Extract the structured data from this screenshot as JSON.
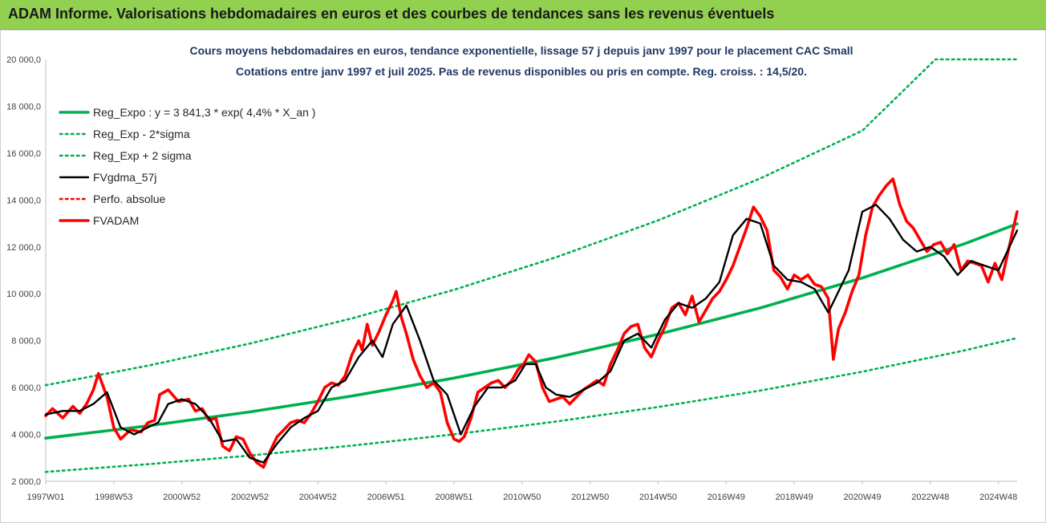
{
  "header": {
    "title": "ADAM Informe. Valorisations hebdomadaires en euros et des courbes de tendances sans les revenus éventuels"
  },
  "chart_data": {
    "type": "line",
    "title": "Cours moyens hebdomadaires en euros, tendance exponentielle, lissage 57 j depuis janv 1997  pour le placement CAC Small",
    "subtitle": "Cotations entre janv 1997 et juil 2025. Pas de revenus disponibles ou pris en compte. Reg. croiss. : 14,5/20.",
    "xlabel": "",
    "ylabel": "",
    "x_range": [
      1997.0,
      2025.55
    ],
    "ylim": [
      2000,
      20000
    ],
    "y_ticks": [
      "2 000,0",
      "4 000,0",
      "6 000,0",
      "8 000,0",
      "10 000,0",
      "12 000,0",
      "14 000,0",
      "16 000,0",
      "18 000,0",
      "20 000,0"
    ],
    "y_tick_values": [
      2000,
      4000,
      6000,
      8000,
      10000,
      12000,
      14000,
      16000,
      18000,
      20000
    ],
    "x_ticks": [
      "1997W01",
      "1998W53",
      "2000W52",
      "2002W52",
      "2004W52",
      "2006W51",
      "2008W51",
      "2010W50",
      "2012W50",
      "2014W50",
      "2016W49",
      "2018W49",
      "2020W49",
      "2022W48",
      "2024W48"
    ],
    "x_tick_values": [
      1997.0,
      1999.0,
      2001.0,
      2003.0,
      2005.0,
      2007.0,
      2009.0,
      2011.0,
      2013.0,
      2015.0,
      2017.0,
      2019.0,
      2021.0,
      2023.0,
      2025.0
    ],
    "grid": false,
    "legend_position": "top-left",
    "series": [
      {
        "name": "Reg_Expo : y = 3 841,3 * exp( 4,4% *  X_an )",
        "color": "#00b050",
        "style": "solid-thick",
        "x": [
          1997.0,
          2000.0,
          2003.0,
          2006.0,
          2009.0,
          2012.0,
          2015.0,
          2018.0,
          2021.0,
          2024.0,
          2025.55
        ],
        "values": [
          3841,
          4364,
          4960,
          5636,
          6404,
          7277,
          8269,
          9395,
          10676,
          12131,
          12980
        ]
      },
      {
        "name": "Reg_Exp - 2*sigma",
        "color": "#00b050",
        "style": "dotted",
        "x": [
          1997.0,
          2000.0,
          2003.0,
          2006.0,
          2009.0,
          2012.0,
          2015.0,
          2018.0,
          2021.0,
          2024.0,
          2025.55
        ],
        "values": [
          2400,
          2728,
          3100,
          3523,
          4003,
          4548,
          5168,
          5872,
          6673,
          7582,
          8113
        ]
      },
      {
        "name": "Reg_Exp + 2 sigma",
        "color": "#00b050",
        "style": "dotted",
        "x": [
          1997.0,
          2000.0,
          2003.0,
          2006.0,
          2009.0,
          2012.0,
          2015.0,
          2018.0,
          2021.0,
          2023.15,
          2025.55
        ],
        "values": [
          6100,
          6931,
          7876,
          8950,
          10170,
          11557,
          13132,
          14922,
          16957,
          20000,
          20000
        ]
      },
      {
        "name": "FVgdma_57j",
        "color": "#000000",
        "style": "solid",
        "x": [
          1997.0,
          1997.5,
          1998.0,
          1998.4,
          1998.8,
          1999.2,
          1999.6,
          2000.0,
          2000.3,
          2000.6,
          2001.0,
          2001.4,
          2001.8,
          2002.2,
          2002.6,
          2003.0,
          2003.4,
          2003.8,
          2004.2,
          2004.6,
          2005.0,
          2005.4,
          2005.8,
          2006.2,
          2006.6,
          2006.9,
          2007.2,
          2007.6,
          2008.0,
          2008.4,
          2008.8,
          2009.2,
          2009.6,
          2010.0,
          2010.4,
          2010.8,
          2011.1,
          2011.4,
          2011.7,
          2012.0,
          2012.4,
          2012.8,
          2013.2,
          2013.6,
          2014.0,
          2014.4,
          2014.8,
          2015.2,
          2015.6,
          2016.0,
          2016.4,
          2016.8,
          2017.2,
          2017.6,
          2018.0,
          2018.4,
          2018.8,
          2019.2,
          2019.6,
          2020.0,
          2020.2,
          2020.6,
          2021.0,
          2021.4,
          2021.8,
          2022.2,
          2022.6,
          2023.0,
          2023.4,
          2023.8,
          2024.2,
          2024.6,
          2025.0,
          2025.55
        ],
        "values": [
          4850,
          5000,
          5000,
          5300,
          5800,
          4300,
          4000,
          4300,
          4500,
          5300,
          5500,
          5300,
          4700,
          3700,
          3800,
          3000,
          2800,
          3600,
          4300,
          4700,
          5000,
          6000,
          6300,
          7300,
          8000,
          7300,
          8700,
          9500,
          8000,
          6300,
          5700,
          4000,
          5200,
          6000,
          6000,
          6300,
          7000,
          7000,
          6000,
          5700,
          5600,
          5900,
          6200,
          6700,
          8000,
          8300,
          7700,
          8900,
          9600,
          9400,
          9800,
          10500,
          12500,
          13200,
          13000,
          11200,
          10600,
          10500,
          10200,
          9200,
          9800,
          11000,
          13500,
          13800,
          13200,
          12300,
          11800,
          12000,
          11600,
          10800,
          11400,
          11200,
          11000,
          12700
        ]
      },
      {
        "name": "Perfo. absolue",
        "color": "#ff0000",
        "style": "dotted",
        "x": [],
        "values": []
      },
      {
        "name": "FVADAM",
        "color": "#ff0000",
        "style": "solid-thick",
        "x": [
          1997.0,
          1997.2,
          1997.5,
          1997.8,
          1998.0,
          1998.2,
          1998.4,
          1998.55,
          1998.8,
          1999.0,
          1999.2,
          1999.5,
          1999.8,
          2000.0,
          2000.2,
          2000.35,
          2000.6,
          2000.9,
          2001.2,
          2001.4,
          2001.6,
          2001.8,
          2002.0,
          2002.2,
          2002.4,
          2002.6,
          2002.8,
          2003.0,
          2003.2,
          2003.4,
          2003.6,
          2003.8,
          2004.0,
          2004.2,
          2004.4,
          2004.6,
          2004.8,
          2005.0,
          2005.2,
          2005.4,
          2005.6,
          2005.8,
          2006.0,
          2006.2,
          2006.3,
          2006.45,
          2006.6,
          2006.8,
          2007.0,
          2007.2,
          2007.3,
          2007.45,
          2007.6,
          2007.8,
          2008.0,
          2008.2,
          2008.4,
          2008.6,
          2008.8,
          2009.0,
          2009.15,
          2009.3,
          2009.5,
          2009.7,
          2009.9,
          2010.1,
          2010.3,
          2010.5,
          2010.7,
          2010.9,
          2011.05,
          2011.2,
          2011.4,
          2011.6,
          2011.8,
          2012.0,
          2012.2,
          2012.4,
          2012.6,
          2012.8,
          2013.0,
          2013.2,
          2013.4,
          2013.6,
          2013.8,
          2014.0,
          2014.2,
          2014.4,
          2014.6,
          2014.8,
          2015.0,
          2015.2,
          2015.4,
          2015.6,
          2015.8,
          2016.0,
          2016.2,
          2016.4,
          2016.6,
          2016.8,
          2017.0,
          2017.2,
          2017.4,
          2017.6,
          2017.8,
          2018.0,
          2018.2,
          2018.4,
          2018.6,
          2018.8,
          2019.0,
          2019.2,
          2019.4,
          2019.6,
          2019.8,
          2020.0,
          2020.15,
          2020.3,
          2020.5,
          2020.7,
          2020.9,
          2021.1,
          2021.3,
          2021.5,
          2021.7,
          2021.9,
          2022.1,
          2022.3,
          2022.5,
          2022.7,
          2022.9,
          2023.1,
          2023.3,
          2023.5,
          2023.7,
          2023.9,
          2024.1,
          2024.3,
          2024.5,
          2024.7,
          2024.9,
          2025.1,
          2025.3,
          2025.55
        ],
        "values": [
          4800,
          5100,
          4700,
          5200,
          4900,
          5300,
          5900,
          6600,
          5600,
          4300,
          3800,
          4200,
          4100,
          4500,
          4600,
          5700,
          5900,
          5400,
          5500,
          5000,
          5100,
          4600,
          4700,
          3500,
          3300,
          3900,
          3800,
          3200,
          2800,
          2600,
          3300,
          3900,
          4200,
          4500,
          4600,
          4500,
          4900,
          5400,
          6000,
          6200,
          6100,
          6500,
          7400,
          8000,
          7600,
          8700,
          7800,
          8400,
          9100,
          9700,
          10100,
          9000,
          8300,
          7200,
          6500,
          6000,
          6200,
          5800,
          4500,
          3800,
          3700,
          3900,
          4700,
          5800,
          6000,
          6200,
          6300,
          6000,
          6300,
          6800,
          7000,
          7400,
          7100,
          6000,
          5400,
          5500,
          5600,
          5300,
          5600,
          5900,
          6100,
          6300,
          6100,
          7000,
          7600,
          8300,
          8600,
          8700,
          7700,
          7300,
          8000,
          8600,
          9400,
          9600,
          9100,
          9900,
          8800,
          9300,
          9800,
          10100,
          10600,
          11200,
          12000,
          12800,
          13700,
          13300,
          12700,
          11000,
          10700,
          10200,
          10800,
          10600,
          10800,
          10400,
          10300,
          9800,
          7200,
          8500,
          9200,
          10100,
          10800,
          12500,
          13700,
          14200,
          14600,
          14900,
          13800,
          13100,
          12800,
          12300,
          11800,
          12100,
          12200,
          11700,
          12100,
          11000,
          11400,
          11300,
          11200,
          10500,
          11300,
          10600,
          11900,
          13500
        ]
      }
    ]
  }
}
